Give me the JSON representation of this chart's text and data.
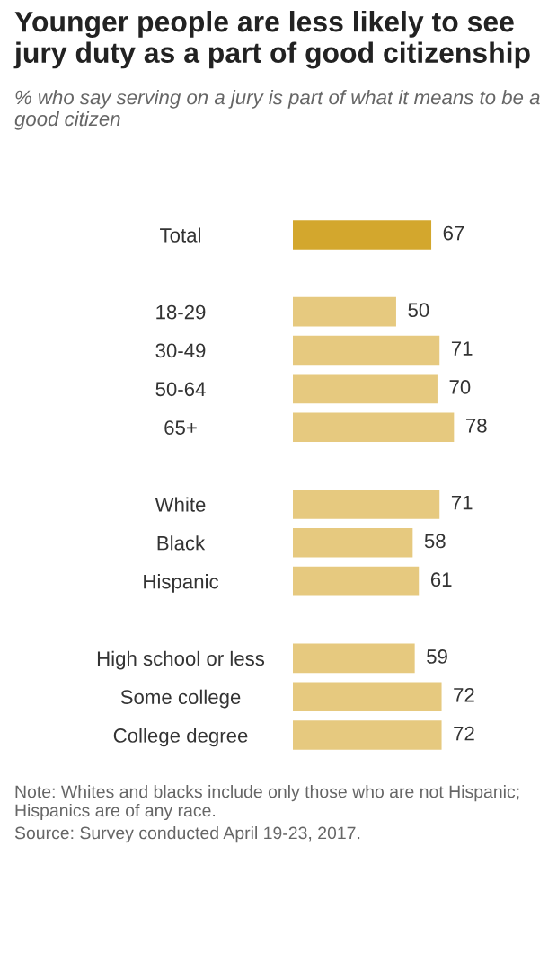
{
  "chart_data": {
    "type": "bar",
    "orientation": "horizontal",
    "title": "Younger people are less likely to see jury duty as a part of good citizenship",
    "subtitle": "% who say serving on a jury is part of what it means to be a good citizen",
    "categories": [
      "Total",
      null,
      "18-29",
      "30-49",
      "50-64",
      "65+",
      null,
      "White",
      "Black",
      "Hispanic",
      null,
      "High school or less",
      "Some college",
      "College degree"
    ],
    "values": [
      67,
      null,
      50,
      71,
      70,
      78,
      null,
      71,
      58,
      61,
      null,
      59,
      72,
      72
    ],
    "colors": [
      "#d3a72d",
      null,
      "#e6c97f",
      "#e6c97f",
      "#e6c97f",
      "#e6c97f",
      null,
      "#e6c97f",
      "#e6c97f",
      "#e6c97f",
      null,
      "#e6c97f",
      "#e6c97f",
      "#e6c97f"
    ],
    "data_labels": true,
    "grid": false,
    "legend": false,
    "annotations": [
      "Note: Whites and blacks include only those who are not Hispanic; Hispanics are of any race.",
      "Source: Survey conducted April 19-23, 2017."
    ]
  }
}
